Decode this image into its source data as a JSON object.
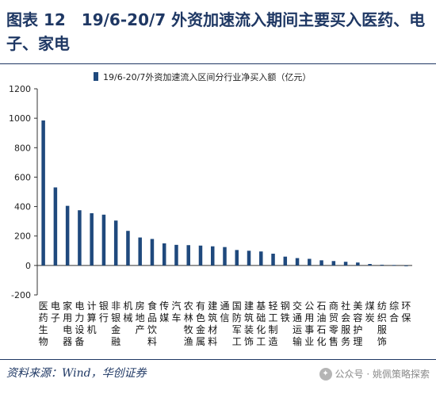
{
  "header": {
    "title": "图表 12　19/6-20/7 外资加速流入期间主要买入医药、电子、家电"
  },
  "footer": {
    "source": "资料来源：Wind，华创证券",
    "watermark": "公众号 · 姚佩策略探索"
  },
  "colors": {
    "accent": "#1f3864",
    "bar": "#1f497d"
  },
  "chart_data": {
    "type": "bar",
    "title": "",
    "xlabel": "",
    "ylabel": "",
    "ylim": [
      -200,
      1200
    ],
    "yticks": [
      -200,
      0,
      200,
      400,
      600,
      800,
      1000,
      1200
    ],
    "grid": false,
    "legend_position": "top-center",
    "categories": [
      "医药生物",
      "电子",
      "家用电器",
      "电力设备",
      "计算机",
      "银行",
      "非银金融",
      "机械",
      "房地产",
      "食品饮料",
      "传媒",
      "汽车",
      "农林牧渔",
      "有色金属",
      "建筑材料",
      "通信",
      "国防军工",
      "建筑装饰",
      "基础化工",
      "轻工制造",
      "钢铁",
      "交通运输",
      "公用事业",
      "石油石化",
      "商贸零售",
      "社会服务",
      "美容护理",
      "煤炭",
      "纺织服饰",
      "综合",
      "环保"
    ],
    "series": [
      {
        "name": "19/6-20/7外资加速流入区间分行业净买入额（亿元）",
        "values": [
          985,
          530,
          405,
          375,
          355,
          345,
          305,
          235,
          190,
          180,
          150,
          140,
          138,
          135,
          130,
          125,
          105,
          100,
          95,
          80,
          60,
          50,
          45,
          35,
          30,
          25,
          20,
          10,
          5,
          3,
          -5
        ]
      }
    ]
  }
}
